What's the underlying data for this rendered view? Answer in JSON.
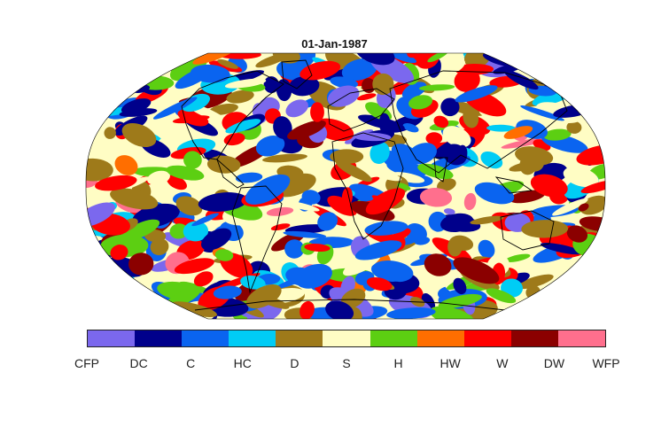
{
  "title": "01-Jan-1987",
  "map": {
    "projection": "Robinson",
    "ocean_background_color": "#fffdc4",
    "coastline_color": "#000000"
  },
  "legend": {
    "categories": [
      {
        "label": "CFP",
        "color": "#7b68ee"
      },
      {
        "label": "DC",
        "color": "#00008b"
      },
      {
        "label": "C",
        "color": "#0a64f0"
      },
      {
        "label": "HC",
        "color": "#00ccf5"
      },
      {
        "label": "D",
        "color": "#9e7a1a"
      },
      {
        "label": "S",
        "color": "#fffdc4"
      },
      {
        "label": "H",
        "color": "#5ccf12"
      },
      {
        "label": "HW",
        "color": "#ff6e00"
      },
      {
        "label": "W",
        "color": "#ff0000"
      },
      {
        "label": "DW",
        "color": "#8b0000"
      },
      {
        "label": "WFP",
        "color": "#ff6f8d"
      }
    ]
  }
}
